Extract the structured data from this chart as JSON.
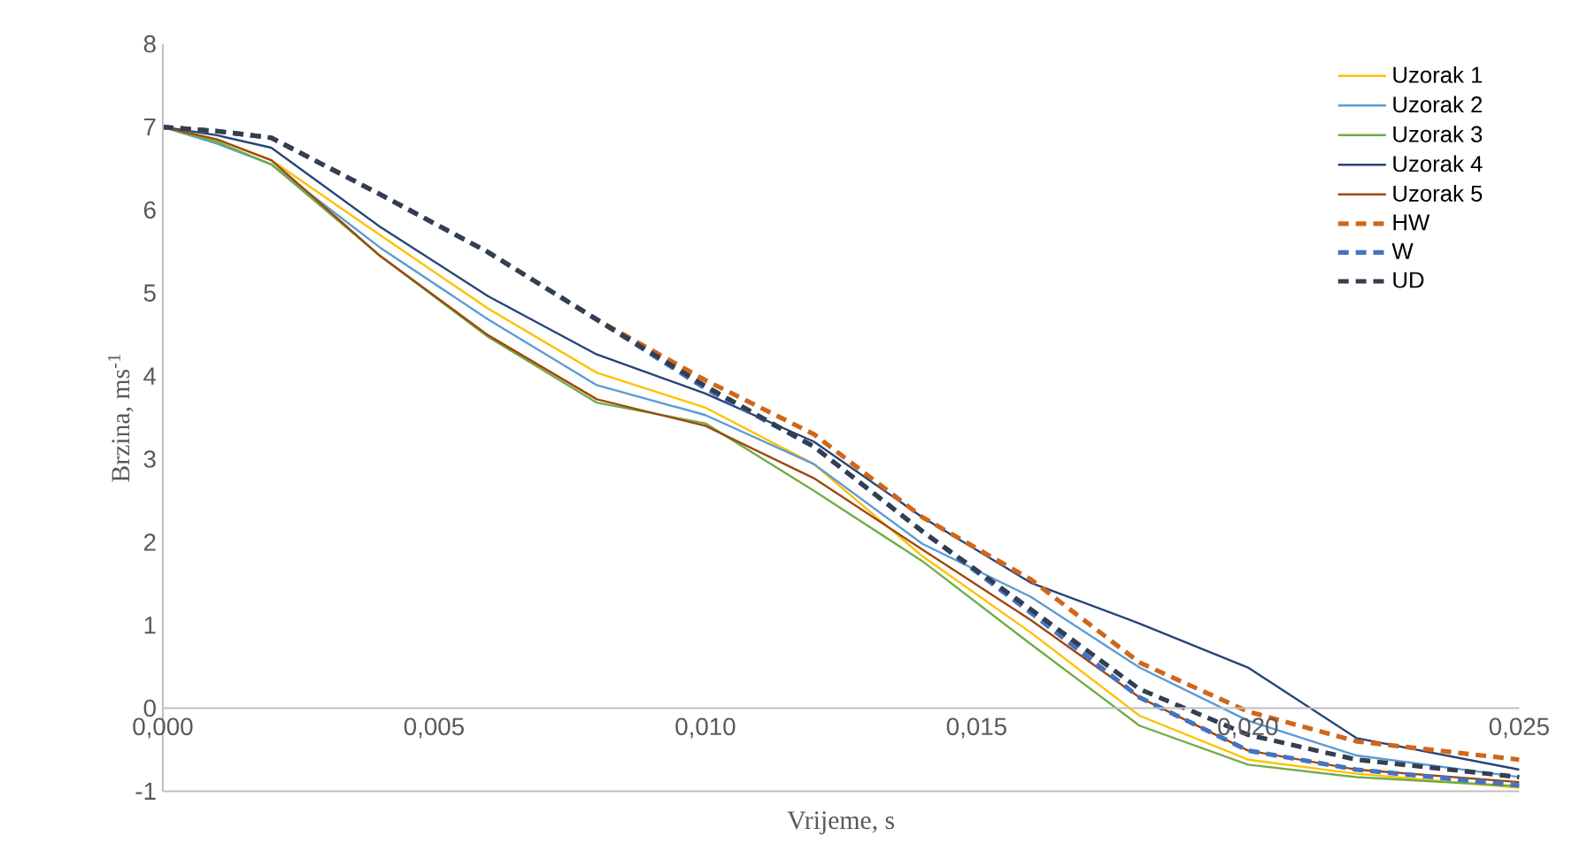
{
  "chart_data": {
    "type": "line",
    "xlabel": "Vrijeme, s",
    "ylabel": "Brzina, ms$^{-1}$",
    "x": [
      0,
      0.001,
      0.002,
      0.004,
      0.006,
      0.008,
      0.01,
      0.012,
      0.014,
      0.016,
      0.018,
      0.02,
      0.022,
      0.025
    ],
    "xlim": [
      0,
      0.025
    ],
    "ylim": [
      -1,
      8
    ],
    "xticks": [
      {
        "value": 0,
        "label": "0,000"
      },
      {
        "value": 0.005,
        "label": "0,005"
      },
      {
        "value": 0.01,
        "label": "0,010"
      },
      {
        "value": 0.015,
        "label": "0,015"
      },
      {
        "value": 0.02,
        "label": "0,020"
      },
      {
        "value": 0.025,
        "label": "0,025"
      }
    ],
    "yticks": [
      -1,
      0,
      1,
      2,
      3,
      4,
      5,
      6,
      7,
      8
    ],
    "legend": "top right",
    "line_style": "solid",
    "series": [
      {
        "name": "Uzorak 1",
        "color": "#ffc000",
        "values": [
          7.0,
          6.85,
          6.6,
          5.7,
          4.81,
          4.04,
          3.62,
          2.94,
          1.83,
          0.91,
          -0.09,
          -0.62,
          -0.79,
          -0.96
        ]
      },
      {
        "name": "Uzorak 2",
        "color": "#5b9bd5",
        "values": [
          7.0,
          6.8,
          6.55,
          5.55,
          4.68,
          3.89,
          3.53,
          2.94,
          1.98,
          1.34,
          0.49,
          -0.15,
          -0.57,
          -0.83
        ]
      },
      {
        "name": "Uzorak 3",
        "color": "#70ad47",
        "values": [
          7.0,
          6.82,
          6.55,
          5.45,
          4.47,
          3.68,
          3.43,
          2.62,
          1.77,
          0.77,
          -0.21,
          -0.68,
          -0.83,
          -0.94
        ]
      },
      {
        "name": "Uzorak 4",
        "color": "#264478",
        "values": [
          7.0,
          6.9,
          6.75,
          5.8,
          4.96,
          4.26,
          3.79,
          3.21,
          2.3,
          1.51,
          1.02,
          0.49,
          -0.36,
          -0.74
        ]
      },
      {
        "name": "Uzorak 5",
        "color": "#9e480e",
        "values": [
          7.0,
          6.85,
          6.6,
          5.45,
          4.49,
          3.72,
          3.4,
          2.77,
          1.91,
          1.06,
          0.13,
          -0.51,
          -0.74,
          -0.89
        ]
      },
      {
        "name": "HW",
        "color": "#d0661a",
        "line_style": "dashed",
        "values": [
          7.0,
          6.95,
          6.87,
          6.19,
          5.49,
          4.68,
          3.95,
          3.3,
          2.3,
          1.55,
          0.55,
          -0.04,
          -0.4,
          -0.62
        ]
      },
      {
        "name": "W",
        "color": "#4472c4",
        "line_style": "dashed",
        "values": [
          7.0,
          6.95,
          6.87,
          6.19,
          5.49,
          4.68,
          3.85,
          3.15,
          2.13,
          1.15,
          0.13,
          -0.51,
          -0.74,
          -0.93
        ]
      },
      {
        "name": "UD",
        "color": "#323f4f",
        "line_style": "dashed",
        "values": [
          7.0,
          6.95,
          6.87,
          6.19,
          5.49,
          4.68,
          3.88,
          3.15,
          2.13,
          1.19,
          0.23,
          -0.32,
          -0.62,
          -0.83
        ]
      }
    ]
  }
}
